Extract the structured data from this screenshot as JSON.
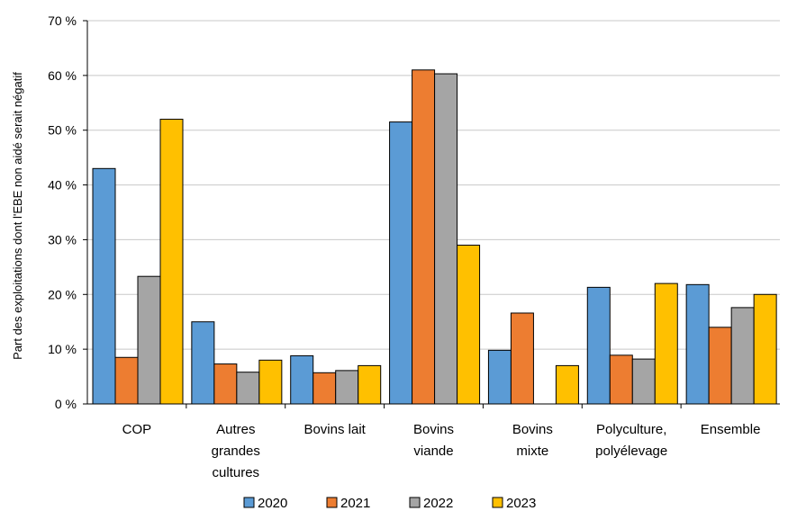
{
  "chart_data": {
    "type": "bar",
    "ylabel": "Part des exploitations dont l'EBE non aidé serait négatif",
    "ylim": [
      0,
      70
    ],
    "y_ticks": [
      "0 %",
      "10 %",
      "20 %",
      "30 %",
      "40 %",
      "50 %",
      "60 %",
      "70 %"
    ],
    "grid": true,
    "legend_position": "bottom",
    "categories": [
      [
        "COP"
      ],
      [
        "Autres",
        "grandes",
        "cultures"
      ],
      [
        "Bovins lait"
      ],
      [
        "Bovins",
        "viande"
      ],
      [
        "Bovins",
        "mixte"
      ],
      [
        "Polyculture,",
        "polyélevage"
      ],
      [
        "Ensemble"
      ]
    ],
    "series": [
      {
        "name": "2020",
        "color": "#5b9bd5",
        "values": [
          43,
          15,
          8.8,
          51.5,
          9.8,
          21.3,
          21.8
        ]
      },
      {
        "name": "2021",
        "color": "#ed7d31",
        "values": [
          8.5,
          7.3,
          5.7,
          61,
          16.6,
          8.9,
          14
        ]
      },
      {
        "name": "2022",
        "color": "#a5a5a5",
        "values": [
          23.3,
          5.8,
          6.1,
          60.3,
          null,
          8.2,
          17.6
        ]
      },
      {
        "name": "2023",
        "color": "#ffc000",
        "values": [
          52,
          8,
          7,
          29,
          7,
          22,
          20
        ]
      }
    ]
  }
}
